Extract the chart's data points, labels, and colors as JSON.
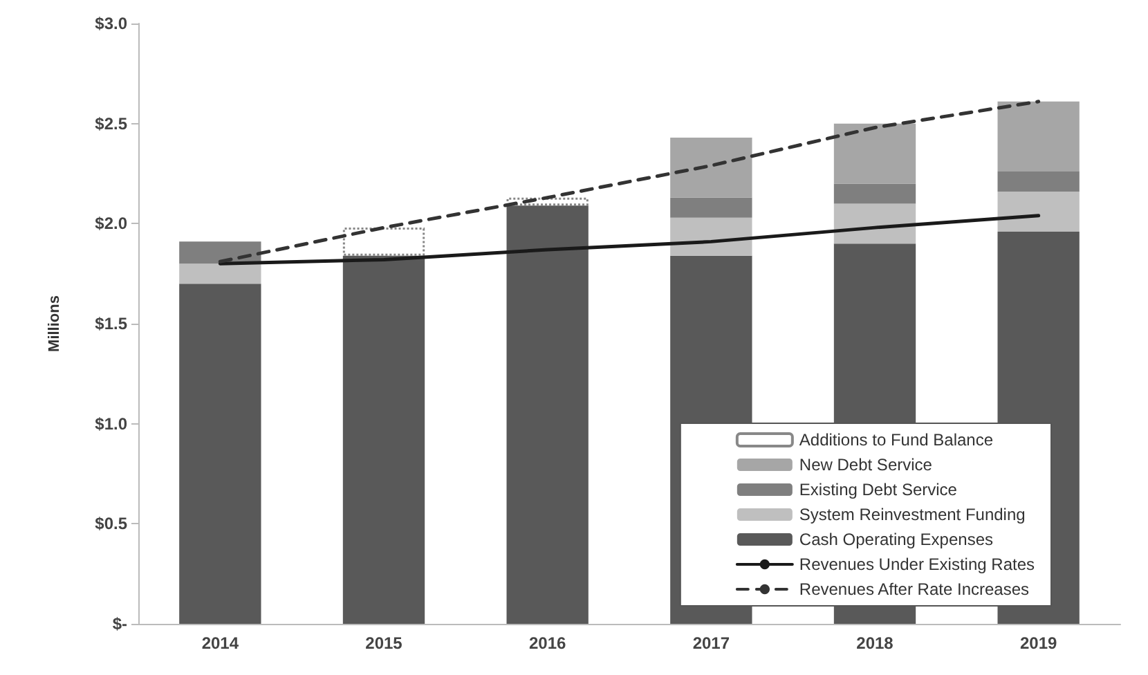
{
  "chart_data": {
    "type": "bar",
    "stacked": true,
    "ylabel": "Millions",
    "categories": [
      "2014",
      "2015",
      "2016",
      "2017",
      "2018",
      "2019"
    ],
    "ylim": [
      0,
      3
    ],
    "yticks": [
      {
        "value": 0,
        "label": "$-"
      },
      {
        "value": 0.5,
        "label": "$0.5"
      },
      {
        "value": 1,
        "label": "$1.0"
      },
      {
        "value": 1.5,
        "label": "$1.5"
      },
      {
        "value": 2,
        "label": "$2.0"
      },
      {
        "value": 2.5,
        "label": "$2.5"
      },
      {
        "value": 3,
        "label": "$3.0"
      }
    ],
    "grid": false,
    "legend": "bottom right",
    "marker": "none",
    "series": [
      {
        "name": "Cash Operating Expenses",
        "color": "#595959",
        "values": [
          1.7,
          1.84,
          2.09,
          1.84,
          1.9,
          1.96
        ]
      },
      {
        "name": "System Reinvestment Funding",
        "color": "#bfbfbf",
        "values": [
          0.1,
          null,
          null,
          0.19,
          0.2,
          0.2
        ]
      },
      {
        "name": "Existing Debt Service",
        "color": "#7f7f7f",
        "values": [
          0.11,
          null,
          null,
          0.1,
          0.1,
          0.1
        ]
      },
      {
        "name": "New Debt Service",
        "color": "#a6a6a6",
        "values": [
          null,
          null,
          null,
          0.3,
          0.3,
          0.35
        ]
      },
      {
        "name": "Additions to Fund Balance",
        "color": "#ffffff",
        "values": [
          null,
          0.14,
          0.04,
          null,
          null,
          null
        ]
      },
      {
        "name": "Revenues Under Existing Rates",
        "type": "line",
        "line_style": "solid",
        "color": "#1a1a1a",
        "values": [
          1.8,
          1.82,
          1.87,
          1.91,
          1.98,
          2.04
        ]
      },
      {
        "name": "Revenues After Rate Increases",
        "type": "line",
        "line_style": "dashed",
        "color": "#333333",
        "values": [
          1.81,
          1.98,
          2.13,
          2.29,
          2.48,
          2.61
        ]
      }
    ]
  }
}
